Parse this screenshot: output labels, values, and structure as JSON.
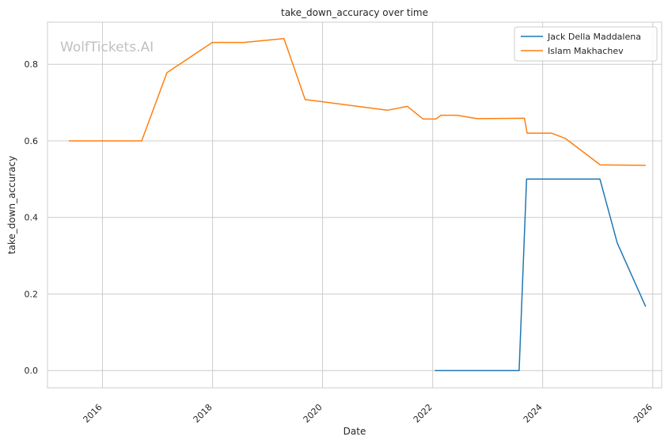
{
  "chart_data": {
    "type": "line",
    "title": "take_down_accuracy over time",
    "xlabel": "Date",
    "ylabel": "take_down_accuracy",
    "watermark": "WolfTickets.AI",
    "x_ticks": [
      "2016",
      "2018",
      "2020",
      "2022",
      "2024",
      "2026"
    ],
    "y_ticks": [
      "0.0",
      "0.2",
      "0.4",
      "0.6",
      "0.8"
    ],
    "xlim": [
      "2015-01-01",
      "2026-03-01"
    ],
    "ylim": [
      -0.045,
      0.91
    ],
    "grid": true,
    "legend_position": "top-right",
    "series": [
      {
        "name": "Jack Della Maddalena",
        "color": "#1f77b4",
        "points": [
          [
            "2022-01-15",
            0.0
          ],
          [
            "2023-07-29",
            0.0
          ],
          [
            "2023-09-16",
            0.5
          ],
          [
            "2025-01-15",
            0.5
          ],
          [
            "2025-05-10",
            0.333
          ],
          [
            "2025-11-15",
            0.167
          ]
        ]
      },
      {
        "name": "Islam Makhachev",
        "color": "#ff7f0e",
        "points": [
          [
            "2015-05-23",
            0.6
          ],
          [
            "2016-09-17",
            0.6
          ],
          [
            "2017-03-04",
            0.778
          ],
          [
            "2017-12-30",
            0.857
          ],
          [
            "2018-07-28",
            0.857
          ],
          [
            "2019-04-20",
            0.867
          ],
          [
            "2019-09-07",
            0.708
          ],
          [
            "2021-03-06",
            0.68
          ],
          [
            "2021-07-17",
            0.69
          ],
          [
            "2021-10-30",
            0.657
          ],
          [
            "2022-01-22",
            0.657
          ],
          [
            "2022-02-25",
            0.667
          ],
          [
            "2022-06-11",
            0.667
          ],
          [
            "2022-10-22",
            0.658
          ],
          [
            "2023-09-02",
            0.659
          ],
          [
            "2023-09-20",
            0.62
          ],
          [
            "2024-03-01",
            0.62
          ],
          [
            "2024-06-01",
            0.606
          ],
          [
            "2025-01-18",
            0.537
          ],
          [
            "2025-11-15",
            0.536
          ]
        ]
      }
    ]
  }
}
